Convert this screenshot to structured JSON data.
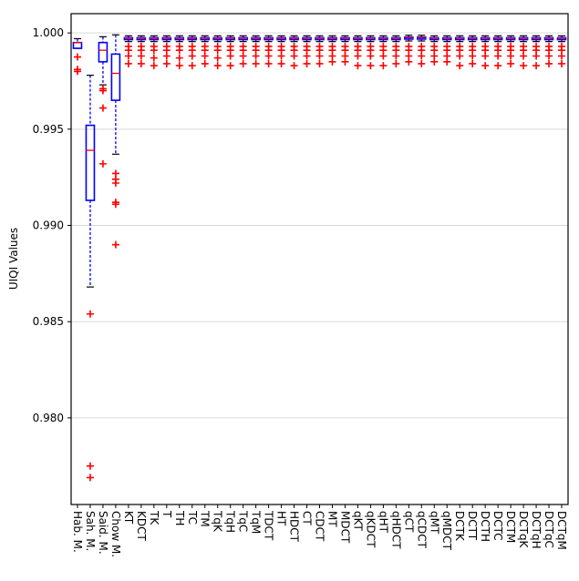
{
  "chart_data": {
    "type": "box",
    "ylabel": "UIQI Values",
    "ylim": [
      0.9755,
      1.001
    ],
    "yticks": [
      0.98,
      0.985,
      0.99,
      0.995,
      1.0
    ],
    "ytick_labels": [
      "0.980",
      "0.985",
      "0.990",
      "0.995",
      "1.000"
    ],
    "grid": "horizontal",
    "colors": {
      "box": "#0000ff",
      "median": "#ff0000",
      "outlier": "#ff0000",
      "whisker": "#0000ff",
      "grid": "#d9d9d9"
    },
    "categories": [
      "Hab. M.",
      "Sah. M.",
      "Said. M.",
      "Chow M.",
      "KT",
      "KDCT",
      "TK",
      "T",
      "TH",
      "TC",
      "TM",
      "TqK",
      "TqH",
      "TqC",
      "TqM",
      "TDCT",
      "HT",
      "HDCT",
      "CT",
      "CDCT",
      "MT",
      "MDCT",
      "qKT",
      "qKDCT",
      "qHT",
      "qHDCT",
      "qCT",
      "qCDCT",
      "qMT",
      "qMDCT",
      "DCTK",
      "DCTT",
      "DCTH",
      "DCTC",
      "DCTM",
      "DCTqK",
      "DCTqH",
      "DCTqC",
      "DCTqM"
    ],
    "boxes": [
      {
        "q1": 0.9992,
        "median": 0.9995,
        "q3": 0.9995,
        "wlow": 0.9992,
        "whigh": 0.9997,
        "outliers": [
          0.99875,
          0.9981,
          0.998
        ]
      },
      {
        "q1": 0.9913,
        "median": 0.9939,
        "q3": 0.9952,
        "wlow": 0.9868,
        "whigh": 0.9978,
        "outliers": [
          0.9854,
          0.9775,
          0.9769
        ]
      },
      {
        "q1": 0.9985,
        "median": 0.9991,
        "q3": 0.9995,
        "wlow": 0.9973,
        "whigh": 0.9998,
        "outliers": [
          0.9971,
          0.997,
          0.9961,
          0.9932
        ]
      },
      {
        "q1": 0.9965,
        "median": 0.9979,
        "q3": 0.9989,
        "wlow": 0.9937,
        "whigh": 0.9999,
        "outliers": [
          0.9927,
          0.9924,
          0.9922,
          0.9912,
          0.9911,
          0.989
        ]
      },
      {
        "q1": 0.99965,
        "median": 0.99972,
        "q3": 0.99975,
        "wlow": 0.99955,
        "whigh": 0.99985,
        "outliers": [
          0.9993,
          0.9991,
          0.9988,
          0.9984
        ]
      },
      {
        "q1": 0.99965,
        "median": 0.99972,
        "q3": 0.99975,
        "wlow": 0.99955,
        "whigh": 0.99985,
        "outliers": [
          0.9993,
          0.9991,
          0.9988,
          0.9984
        ]
      },
      {
        "q1": 0.99965,
        "median": 0.99972,
        "q3": 0.99975,
        "wlow": 0.99955,
        "whigh": 0.99985,
        "outliers": [
          0.9993,
          0.9991,
          0.9987,
          0.9983
        ]
      },
      {
        "q1": 0.99965,
        "median": 0.99972,
        "q3": 0.99975,
        "wlow": 0.99955,
        "whigh": 0.99985,
        "outliers": [
          0.9993,
          0.9991,
          0.9988,
          0.9984
        ]
      },
      {
        "q1": 0.99965,
        "median": 0.99972,
        "q3": 0.99975,
        "wlow": 0.99955,
        "whigh": 0.99985,
        "outliers": [
          0.9993,
          0.9991,
          0.9987,
          0.9983
        ]
      },
      {
        "q1": 0.99965,
        "median": 0.99972,
        "q3": 0.99975,
        "wlow": 0.99955,
        "whigh": 0.99985,
        "outliers": [
          0.9993,
          0.9991,
          0.9988,
          0.9983
        ]
      },
      {
        "q1": 0.99965,
        "median": 0.99972,
        "q3": 0.99975,
        "wlow": 0.99955,
        "whigh": 0.99985,
        "outliers": [
          0.9993,
          0.9991,
          0.9988,
          0.9984
        ]
      },
      {
        "q1": 0.99965,
        "median": 0.99972,
        "q3": 0.99975,
        "wlow": 0.99955,
        "whigh": 0.99985,
        "outliers": [
          0.9993,
          0.9991,
          0.9987,
          0.9983
        ]
      },
      {
        "q1": 0.99965,
        "median": 0.99972,
        "q3": 0.99975,
        "wlow": 0.99955,
        "whigh": 0.99985,
        "outliers": [
          0.9993,
          0.9991,
          0.9988,
          0.9983
        ]
      },
      {
        "q1": 0.99965,
        "median": 0.99972,
        "q3": 0.99975,
        "wlow": 0.99955,
        "whigh": 0.99985,
        "outliers": [
          0.9993,
          0.9991,
          0.9988,
          0.9984
        ]
      },
      {
        "q1": 0.99965,
        "median": 0.99972,
        "q3": 0.99975,
        "wlow": 0.99955,
        "whigh": 0.99985,
        "outliers": [
          0.9993,
          0.9991,
          0.9988,
          0.9984
        ]
      },
      {
        "q1": 0.99965,
        "median": 0.99972,
        "q3": 0.99975,
        "wlow": 0.99955,
        "whigh": 0.99985,
        "outliers": [
          0.9993,
          0.9991,
          0.9988,
          0.9984
        ]
      },
      {
        "q1": 0.99965,
        "median": 0.99972,
        "q3": 0.99975,
        "wlow": 0.99955,
        "whigh": 0.99985,
        "outliers": [
          0.9993,
          0.9991,
          0.9988,
          0.9984
        ]
      },
      {
        "q1": 0.99965,
        "median": 0.99972,
        "q3": 0.99975,
        "wlow": 0.99955,
        "whigh": 0.99985,
        "outliers": [
          0.9993,
          0.9991,
          0.9988,
          0.9983
        ]
      },
      {
        "q1": 0.99965,
        "median": 0.99972,
        "q3": 0.99975,
        "wlow": 0.99955,
        "whigh": 0.99985,
        "outliers": [
          0.9993,
          0.9991,
          0.9988,
          0.9984
        ]
      },
      {
        "q1": 0.99965,
        "median": 0.99972,
        "q3": 0.99975,
        "wlow": 0.99955,
        "whigh": 0.99985,
        "outliers": [
          0.9993,
          0.9991,
          0.9988,
          0.9984
        ]
      },
      {
        "q1": 0.99965,
        "median": 0.99972,
        "q3": 0.99975,
        "wlow": 0.99955,
        "whigh": 0.99985,
        "outliers": [
          0.9993,
          0.9991,
          0.9988,
          0.9985
        ]
      },
      {
        "q1": 0.99965,
        "median": 0.99972,
        "q3": 0.99975,
        "wlow": 0.99955,
        "whigh": 0.99985,
        "outliers": [
          0.9993,
          0.9991,
          0.9988,
          0.9985
        ]
      },
      {
        "q1": 0.99965,
        "median": 0.99972,
        "q3": 0.99975,
        "wlow": 0.99955,
        "whigh": 0.99985,
        "outliers": [
          0.9993,
          0.9991,
          0.9988,
          0.9983
        ]
      },
      {
        "q1": 0.99965,
        "median": 0.99972,
        "q3": 0.99975,
        "wlow": 0.99955,
        "whigh": 0.99985,
        "outliers": [
          0.9993,
          0.9991,
          0.9988,
          0.9983
        ]
      },
      {
        "q1": 0.99965,
        "median": 0.99972,
        "q3": 0.99975,
        "wlow": 0.99955,
        "whigh": 0.99985,
        "outliers": [
          0.9993,
          0.9991,
          0.9988,
          0.9983
        ]
      },
      {
        "q1": 0.99965,
        "median": 0.99972,
        "q3": 0.99975,
        "wlow": 0.99955,
        "whigh": 0.99985,
        "outliers": [
          0.9993,
          0.9991,
          0.9988,
          0.9984
        ]
      },
      {
        "q1": 0.99968,
        "median": 0.99975,
        "q3": 0.99978,
        "wlow": 0.99958,
        "whigh": 0.99988,
        "outliers": [
          0.9993,
          0.9991,
          0.9988,
          0.9985
        ]
      },
      {
        "q1": 0.99968,
        "median": 0.99975,
        "q3": 0.99978,
        "wlow": 0.99958,
        "whigh": 0.99988,
        "outliers": [
          0.9993,
          0.9991,
          0.9988,
          0.9984
        ]
      },
      {
        "q1": 0.99965,
        "median": 0.99972,
        "q3": 0.99975,
        "wlow": 0.99955,
        "whigh": 0.99985,
        "outliers": [
          0.9993,
          0.9991,
          0.9988,
          0.9985
        ]
      },
      {
        "q1": 0.99965,
        "median": 0.99972,
        "q3": 0.99975,
        "wlow": 0.99955,
        "whigh": 0.99985,
        "outliers": [
          0.9993,
          0.9991,
          0.9988,
          0.9985
        ]
      },
      {
        "q1": 0.99965,
        "median": 0.99972,
        "q3": 0.99975,
        "wlow": 0.99955,
        "whigh": 0.99985,
        "outliers": [
          0.9993,
          0.9991,
          0.9988,
          0.9983
        ]
      },
      {
        "q1": 0.99965,
        "median": 0.99972,
        "q3": 0.99975,
        "wlow": 0.99955,
        "whigh": 0.99985,
        "outliers": [
          0.9993,
          0.9991,
          0.9988,
          0.9984
        ]
      },
      {
        "q1": 0.99965,
        "median": 0.99972,
        "q3": 0.99975,
        "wlow": 0.99955,
        "whigh": 0.99985,
        "outliers": [
          0.9993,
          0.9991,
          0.9988,
          0.9983
        ]
      },
      {
        "q1": 0.99965,
        "median": 0.99972,
        "q3": 0.99975,
        "wlow": 0.99955,
        "whigh": 0.99985,
        "outliers": [
          0.9993,
          0.9991,
          0.9988,
          0.9983
        ]
      },
      {
        "q1": 0.99965,
        "median": 0.99972,
        "q3": 0.99975,
        "wlow": 0.99955,
        "whigh": 0.99985,
        "outliers": [
          0.9993,
          0.9991,
          0.9988,
          0.9984
        ]
      },
      {
        "q1": 0.99965,
        "median": 0.99972,
        "q3": 0.99975,
        "wlow": 0.99955,
        "whigh": 0.99985,
        "outliers": [
          0.9993,
          0.9991,
          0.9988,
          0.9983
        ]
      },
      {
        "q1": 0.99965,
        "median": 0.99972,
        "q3": 0.99975,
        "wlow": 0.99955,
        "whigh": 0.99985,
        "outliers": [
          0.9993,
          0.9991,
          0.9988,
          0.9983
        ]
      },
      {
        "q1": 0.99965,
        "median": 0.99972,
        "q3": 0.99975,
        "wlow": 0.99955,
        "whigh": 0.99985,
        "outliers": [
          0.9993,
          0.9991,
          0.9988,
          0.9984
        ]
      },
      {
        "q1": 0.99965,
        "median": 0.99972,
        "q3": 0.99975,
        "wlow": 0.99955,
        "whigh": 0.99985,
        "outliers": [
          0.9993,
          0.9991,
          0.9988,
          0.9984
        ]
      }
    ]
  }
}
